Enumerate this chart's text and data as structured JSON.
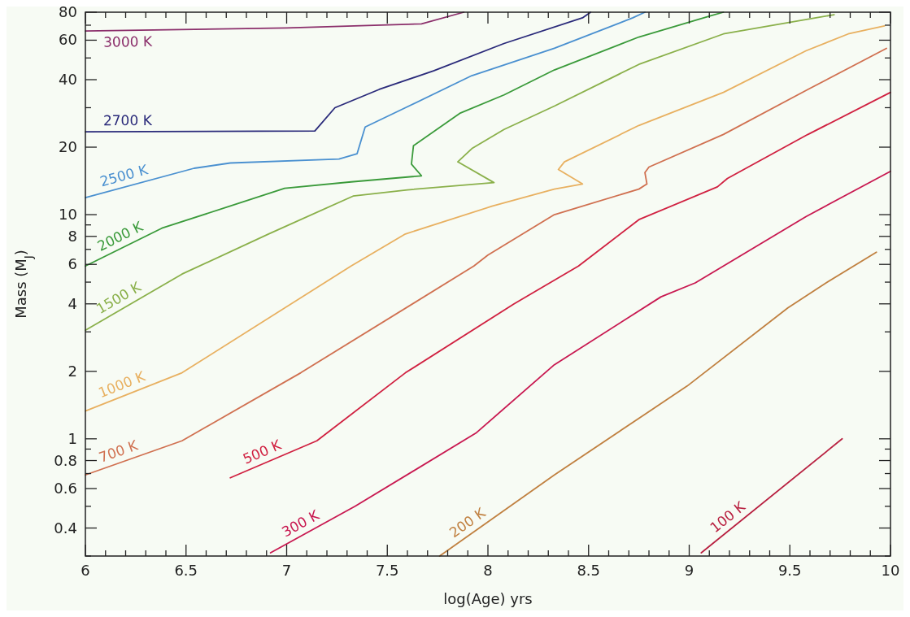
{
  "chart_data": {
    "type": "line",
    "xlabel": "log(Age) yrs",
    "ylabel": "Mass (M$_{J}$)",
    "log": "y",
    "grid": false,
    "marker": "none",
    "line_style": "solid",
    "xlim": [
      6,
      10
    ],
    "ylim": [
      0.3,
      80
    ],
    "xticks": [
      6,
      {
        "value": 6.1,
        "label": null
      },
      {
        "value": 6.2,
        "label": null
      },
      {
        "value": 6.3,
        "label": null
      },
      {
        "value": 6.4,
        "label": null
      },
      6.5,
      {
        "value": 6.6,
        "label": null
      },
      {
        "value": 6.7,
        "label": null
      },
      {
        "value": 6.8,
        "label": null
      },
      {
        "value": 6.9,
        "label": null
      },
      7,
      {
        "value": 7.1,
        "label": null
      },
      {
        "value": 7.2,
        "label": null
      },
      {
        "value": 7.3,
        "label": null
      },
      {
        "value": 7.4,
        "label": null
      },
      7.5,
      {
        "value": 7.6,
        "label": null
      },
      {
        "value": 7.7,
        "label": null
      },
      {
        "value": 7.8,
        "label": null
      },
      {
        "value": 7.9,
        "label": null
      },
      8,
      {
        "value": 8.1,
        "label": null
      },
      {
        "value": 8.2,
        "label": null
      },
      {
        "value": 8.3,
        "label": null
      },
      {
        "value": 8.4,
        "label": null
      },
      8.5,
      {
        "value": 8.6,
        "label": null
      },
      {
        "value": 8.7,
        "label": null
      },
      {
        "value": 8.8,
        "label": null
      },
      {
        "value": 8.9,
        "label": null
      },
      9,
      {
        "value": 9.1,
        "label": null
      },
      {
        "value": 9.2,
        "label": null
      },
      {
        "value": 9.3,
        "label": null
      },
      {
        "value": 9.4,
        "label": null
      },
      9.5,
      {
        "value": 9.6,
        "label": null
      },
      {
        "value": 9.7,
        "label": null
      },
      {
        "value": 9.8,
        "label": null
      },
      {
        "value": 9.9,
        "label": null
      },
      10
    ],
    "yticks": [
      {
        "value": 0.3,
        "label": null
      },
      0.4,
      {
        "value": 0.5,
        "label": null
      },
      0.6,
      {
        "value": 0.7,
        "label": null
      },
      0.8,
      {
        "value": 0.9,
        "label": null
      },
      1,
      2,
      {
        "value": 3,
        "label": null
      },
      4,
      {
        "value": 5,
        "label": null
      },
      6,
      {
        "value": 7,
        "label": null
      },
      8,
      {
        "value": 9,
        "label": null
      },
      10,
      20,
      {
        "value": 30,
        "label": null
      },
      40,
      {
        "value": 50,
        "label": null
      },
      60,
      {
        "value": 70,
        "label": null
      },
      80
    ],
    "series": [
      {
        "name": "3000 K",
        "color": "#8b2f6b",
        "x": [
          6,
          7.0,
          7.67,
          7.88
        ],
        "values": [
          66,
          68,
          71,
          80
        ]
      },
      {
        "name": "2700 K",
        "color": "#2a2a7a",
        "x": [
          6,
          7.14,
          7.24,
          7.46,
          7.73,
          8.08,
          8.47,
          8.51
        ],
        "values": [
          23.4,
          23.6,
          30,
          36.2,
          43.8,
          58,
          75.5,
          80
        ]
      },
      {
        "name": "2500 K",
        "color": "#4a90d0",
        "x": [
          6,
          6.54,
          6.72,
          7.26,
          7.35,
          7.39,
          7.59,
          7.92,
          8.33,
          8.72,
          8.78
        ],
        "values": [
          11.9,
          16.1,
          17,
          17.7,
          18.7,
          24.6,
          30,
          41.7,
          55.2,
          75.5,
          80
        ]
      },
      {
        "name": "2000 K",
        "color": "#3a9a3a",
        "x": [
          6,
          6.38,
          6.99,
          7.32,
          7.67,
          7.62,
          7.63,
          7.86,
          8.08,
          8.33,
          8.75,
          9.1,
          9.17
        ],
        "values": [
          5.9,
          8.7,
          13.1,
          14,
          14.9,
          16.8,
          20.3,
          28.3,
          34.2,
          44.2,
          62,
          76.8,
          80
        ]
      },
      {
        "name": "1500 K",
        "color": "#8ab04a",
        "x": [
          6,
          6.48,
          6.91,
          7.33,
          7.6,
          8.03,
          7.85,
          7.92,
          8.08,
          8.33,
          8.75,
          9.17,
          9.63,
          9.72
        ],
        "values": [
          3.05,
          5.43,
          8.2,
          12.1,
          12.9,
          13.9,
          17.2,
          19.7,
          24,
          30.5,
          46.8,
          64,
          75.5,
          78
        ]
      },
      {
        "name": "1000 K",
        "color": "#e8b060",
        "x": [
          6,
          6.48,
          7.32,
          7.59,
          8.02,
          8.33,
          8.47,
          8.35,
          8.38,
          8.75,
          9.17,
          9.58,
          9.79,
          9.97
        ],
        "values": [
          1.33,
          1.97,
          5.9,
          8.2,
          10.9,
          13,
          13.7,
          15.9,
          17.2,
          25,
          35.1,
          53.8,
          64,
          69.5
        ]
      },
      {
        "name": "700 K",
        "color": "#d07050",
        "x": [
          6,
          6.48,
          7.07,
          7.93,
          8.0,
          8.33,
          8.75,
          8.79,
          8.78,
          8.8,
          9.17,
          9.59,
          9.98
        ],
        "values": [
          0.69,
          0.98,
          1.97,
          5.9,
          6.6,
          10,
          13,
          13.7,
          15.4,
          16.3,
          22.8,
          36.2,
          55.2
        ]
      },
      {
        "name": "500 K",
        "color": "#d02040",
        "x": [
          6.72,
          7.15,
          7.59,
          8.13,
          8.45,
          8.75,
          9.14,
          9.19,
          9.59,
          10
        ],
        "values": [
          0.67,
          0.98,
          1.97,
          4,
          5.9,
          9.5,
          13.3,
          14.5,
          22.8,
          35.1
        ]
      },
      {
        "name": "300 K",
        "color": "#c81850",
        "x": [
          6.92,
          7.34,
          7.94,
          8.33,
          8.86,
          9.03,
          9.58,
          10
        ],
        "values": [
          0.31,
          0.5,
          1.06,
          2.14,
          4.3,
          4.96,
          9.8,
          15.6
        ]
      },
      {
        "name": "200 K",
        "color": "#c08040",
        "x": [
          7.76,
          8.33,
          8.99,
          9.49,
          9.68,
          9.93
        ],
        "values": [
          0.3,
          0.69,
          1.72,
          3.84,
          4.96,
          6.8
        ]
      },
      {
        "name": "100 K",
        "color": "#b82040",
        "x": [
          9.06,
          9.76
        ],
        "values": [
          0.31,
          1
        ]
      }
    ]
  }
}
